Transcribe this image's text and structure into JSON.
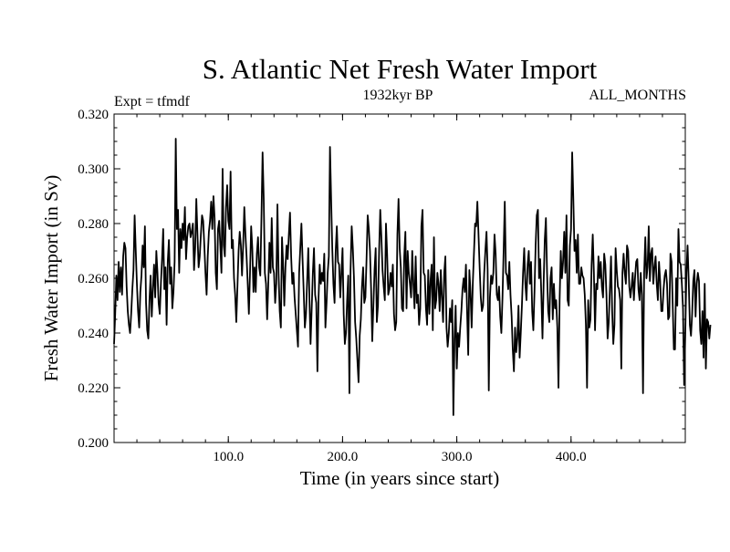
{
  "chart_data": {
    "type": "line",
    "title": "S. Atlantic Net Fresh Water Import",
    "subtitle": "1932kyr BP",
    "experiment_label": "Expt = tfmdf",
    "months_label": "ALL_MONTHS",
    "xlabel": "Time (in years since start)",
    "ylabel": "Fresh Water Import (in Sv)",
    "xlim": [
      0,
      500
    ],
    "ylim": [
      0.2,
      0.32
    ],
    "x_ticks": [
      100,
      200,
      300,
      400
    ],
    "x_tick_labels": [
      "100.0",
      "200.0",
      "300.0",
      "400.0"
    ],
    "y_ticks": [
      0.2,
      0.22,
      0.24,
      0.26,
      0.28,
      0.3,
      0.32
    ],
    "y_tick_labels": [
      "0.200",
      "0.220",
      "0.240",
      "0.260",
      "0.280",
      "0.300",
      "0.320"
    ],
    "grid": false,
    "line_color": "#000000",
    "series": [
      {
        "name": "Net Fresh Water Import",
        "x_start": 0,
        "x_step": 1,
        "values": [
          0.236,
          0.247,
          0.261,
          0.252,
          0.266,
          0.255,
          0.264,
          0.254,
          0.268,
          0.273,
          0.271,
          0.257,
          0.248,
          0.243,
          0.24,
          0.247,
          0.256,
          0.263,
          0.283,
          0.27,
          0.258,
          0.248,
          0.242,
          0.255,
          0.261,
          0.272,
          0.264,
          0.279,
          0.251,
          0.241,
          0.238,
          0.252,
          0.261,
          0.246,
          0.256,
          0.265,
          0.253,
          0.27,
          0.262,
          0.251,
          0.247,
          0.258,
          0.267,
          0.278,
          0.256,
          0.264,
          0.243,
          0.266,
          0.274,
          0.258,
          0.264,
          0.249,
          0.255,
          0.266,
          0.311,
          0.278,
          0.285,
          0.262,
          0.278,
          0.271,
          0.28,
          0.274,
          0.286,
          0.267,
          0.275,
          0.279,
          0.28,
          0.275,
          0.277,
          0.28,
          0.263,
          0.271,
          0.289,
          0.276,
          0.264,
          0.268,
          0.276,
          0.283,
          0.281,
          0.272,
          0.262,
          0.254,
          0.268,
          0.277,
          0.281,
          0.288,
          0.278,
          0.29,
          0.282,
          0.262,
          0.256,
          0.278,
          0.281,
          0.272,
          0.262,
          0.3,
          0.272,
          0.268,
          0.286,
          0.294,
          0.281,
          0.278,
          0.299,
          0.271,
          0.274,
          0.26,
          0.254,
          0.244,
          0.257,
          0.27,
          0.277,
          0.272,
          0.261,
          0.272,
          0.286,
          0.276,
          0.268,
          0.258,
          0.247,
          0.262,
          0.279,
          0.271,
          0.255,
          0.264,
          0.255,
          0.269,
          0.275,
          0.264,
          0.261,
          0.282,
          0.306,
          0.289,
          0.262,
          0.258,
          0.245,
          0.258,
          0.273,
          0.262,
          0.282,
          0.264,
          0.262,
          0.251,
          0.258,
          0.287,
          0.262,
          0.248,
          0.242,
          0.275,
          0.265,
          0.25,
          0.264,
          0.272,
          0.267,
          0.276,
          0.284,
          0.268,
          0.258,
          0.262,
          0.253,
          0.247,
          0.241,
          0.235,
          0.262,
          0.271,
          0.28,
          0.267,
          0.255,
          0.242,
          0.247,
          0.259,
          0.271,
          0.253,
          0.236,
          0.249,
          0.262,
          0.271,
          0.254,
          0.251,
          0.226,
          0.253,
          0.265,
          0.258,
          0.262,
          0.259,
          0.269,
          0.242,
          0.251,
          0.262,
          0.268,
          0.308,
          0.289,
          0.271,
          0.258,
          0.251,
          0.27,
          0.279,
          0.266,
          0.265,
          0.253,
          0.262,
          0.271,
          0.247,
          0.236,
          0.24,
          0.252,
          0.261,
          0.218,
          0.263,
          0.279,
          0.271,
          0.26,
          0.244,
          0.238,
          0.23,
          0.222,
          0.239,
          0.245,
          0.257,
          0.264,
          0.251,
          0.253,
          0.267,
          0.283,
          0.278,
          0.27,
          0.256,
          0.237,
          0.25,
          0.263,
          0.271,
          0.244,
          0.25,
          0.27,
          0.285,
          0.275,
          0.263,
          0.257,
          0.252,
          0.28,
          0.269,
          0.254,
          0.256,
          0.262,
          0.257,
          0.265,
          0.247,
          0.241,
          0.244,
          0.276,
          0.289,
          0.271,
          0.264,
          0.249,
          0.248,
          0.268,
          0.277,
          0.249,
          0.27,
          0.262,
          0.258,
          0.253,
          0.27,
          0.258,
          0.249,
          0.268,
          0.251,
          0.254,
          0.243,
          0.249,
          0.279,
          0.285,
          0.262,
          0.261,
          0.249,
          0.243,
          0.263,
          0.247,
          0.259,
          0.265,
          0.241,
          0.275,
          0.249,
          0.252,
          0.262,
          0.258,
          0.248,
          0.263,
          0.253,
          0.244,
          0.262,
          0.268,
          0.242,
          0.235,
          0.24,
          0.249,
          0.244,
          0.252,
          0.21,
          0.238,
          0.25,
          0.227,
          0.24,
          0.235,
          0.242,
          0.248,
          0.256,
          0.26,
          0.255,
          0.265,
          0.248,
          0.232,
          0.263,
          0.255,
          0.242,
          0.258,
          0.269,
          0.28,
          0.279,
          0.288,
          0.276,
          0.264,
          0.253,
          0.248,
          0.25,
          0.262,
          0.27,
          0.277,
          0.263,
          0.219,
          0.253,
          0.261,
          0.258,
          0.262,
          0.276,
          0.269,
          0.254,
          0.252,
          0.257,
          0.246,
          0.24,
          0.253,
          0.27,
          0.288,
          0.262,
          0.261,
          0.256,
          0.266,
          0.254,
          0.246,
          0.234,
          0.226,
          0.242,
          0.233,
          0.238,
          0.25,
          0.231,
          0.24,
          0.25,
          0.262,
          0.271,
          0.258,
          0.252,
          0.265,
          0.27,
          0.258,
          0.266,
          0.248,
          0.241,
          0.255,
          0.272,
          0.283,
          0.285,
          0.26,
          0.267,
          0.254,
          0.238,
          0.258,
          0.274,
          0.282,
          0.262,
          0.248,
          0.244,
          0.26,
          0.264,
          0.245,
          0.258,
          0.249,
          0.252,
          0.242,
          0.22,
          0.252,
          0.27,
          0.26,
          0.266,
          0.277,
          0.262,
          0.283,
          0.252,
          0.25,
          0.272,
          0.278,
          0.306,
          0.289,
          0.27,
          0.274,
          0.262,
          0.276,
          0.258,
          0.258,
          0.264,
          0.261,
          0.26,
          0.254,
          0.243,
          0.22,
          0.252,
          0.242,
          0.245,
          0.265,
          0.276,
          0.262,
          0.241,
          0.258,
          0.256,
          0.268,
          0.26,
          0.266,
          0.257,
          0.253,
          0.269,
          0.265,
          0.254,
          0.238,
          0.244,
          0.256,
          0.268,
          0.248,
          0.236,
          0.243,
          0.271,
          0.263,
          0.257,
          0.256,
          0.252,
          0.227,
          0.262,
          0.269,
          0.262,
          0.258,
          0.272,
          0.27,
          0.257,
          0.253,
          0.257,
          0.262,
          0.252,
          0.26,
          0.266,
          0.267,
          0.256,
          0.252,
          0.262,
          0.254,
          0.218,
          0.262,
          0.275,
          0.26,
          0.264,
          0.279,
          0.259,
          0.269,
          0.271,
          0.258,
          0.264,
          0.268,
          0.258,
          0.252,
          0.266,
          0.259,
          0.248,
          0.248,
          0.256,
          0.261,
          0.263,
          0.258,
          0.245,
          0.246,
          0.269,
          0.266,
          0.25,
          0.234,
          0.234,
          0.26,
          0.25,
          0.278,
          0.266,
          0.265,
          0.258,
          0.249,
          0.221,
          0.24,
          0.262,
          0.272,
          0.259,
          0.243,
          0.239,
          0.247,
          0.259,
          0.263,
          0.246,
          0.258,
          0.262,
          0.259,
          0.241,
          0.236,
          0.248,
          0.231,
          0.258,
          0.227,
          0.245,
          0.244,
          0.238,
          0.243
        ]
      }
    ]
  }
}
